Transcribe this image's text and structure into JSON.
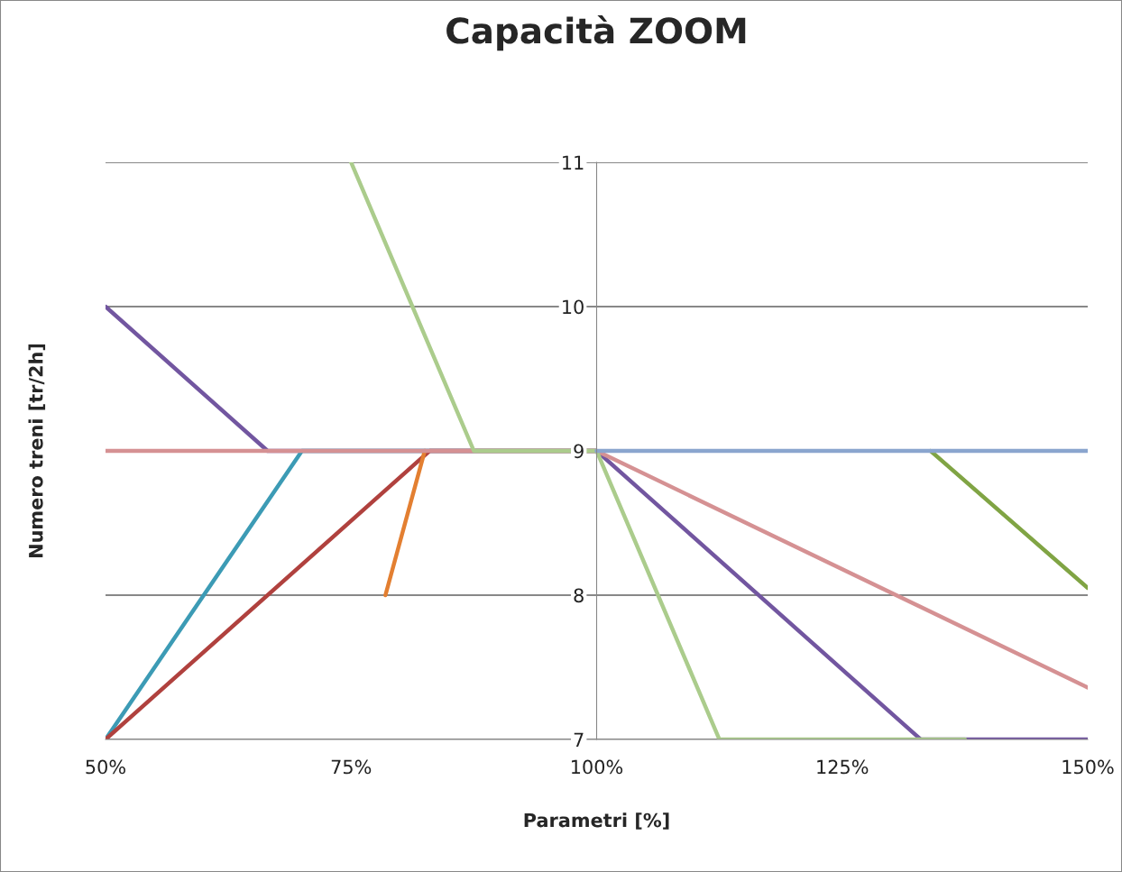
{
  "chart_data": {
    "type": "line",
    "title": "Capacità ZOOM",
    "xlabel": "Parametri [%]",
    "ylabel": "Numero treni [tr/2h]",
    "xlim": [
      50,
      150
    ],
    "xticks": [
      {
        "value": 50,
        "label": "50%"
      },
      {
        "value": 75,
        "label": "75%"
      },
      {
        "value": 100,
        "label": "100%"
      },
      {
        "value": 125,
        "label": "125%"
      },
      {
        "value": 150,
        "label": "150%"
      }
    ],
    "ylim": [
      7,
      11
    ],
    "yticks": [
      7,
      8,
      9,
      10,
      11
    ],
    "grid": "y",
    "legend": false,
    "marker": "none",
    "line_style": "solid",
    "series": [
      {
        "color": "#7256a0",
        "x": [
          50,
          66.5,
          100,
          133,
          150
        ],
        "values": [
          10,
          9,
          9,
          7,
          7
        ]
      },
      {
        "color": "#3c9bb5",
        "x": [
          50,
          70,
          100
        ],
        "values": [
          7,
          9,
          9
        ]
      },
      {
        "color": "#b0413e",
        "x": [
          50,
          83,
          100
        ],
        "values": [
          7,
          9,
          9
        ]
      },
      {
        "color": "#e37f31",
        "x": [
          78.5,
          82.5
        ],
        "values": [
          8,
          9
        ]
      },
      {
        "color": "#d59193",
        "x": [
          50,
          100,
          150
        ],
        "values": [
          9,
          9,
          7.36
        ]
      },
      {
        "color": "#abcc8c",
        "x": [
          75,
          87.5,
          100,
          112.5,
          137.5
        ],
        "values": [
          11,
          9,
          9,
          7,
          7
        ]
      },
      {
        "color": "#80a444",
        "x": [
          134,
          150
        ],
        "values": [
          9,
          8.05
        ]
      },
      {
        "color": "#8aa5ce",
        "x": [
          100,
          150
        ],
        "values": [
          9,
          9
        ]
      }
    ]
  }
}
